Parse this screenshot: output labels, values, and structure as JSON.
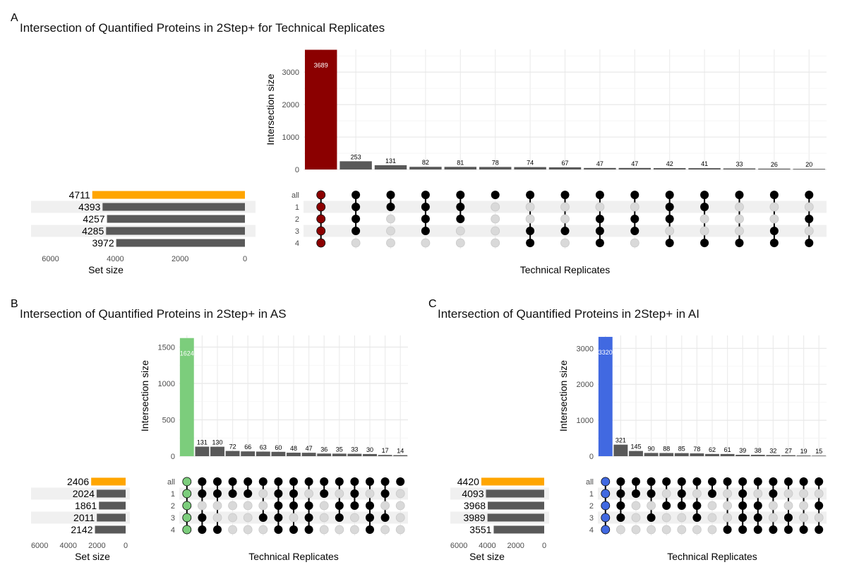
{
  "panels": [
    {
      "letter": "A",
      "title": "Intersection of Quantified Proteins in 2Step+ for Technical Replicates",
      "highlight_color": "#8B0000",
      "set_bar_highlight_color": "#FFA500",
      "chart_data": {
        "type": "bar",
        "subtype": "upset",
        "ylabel": "Intersection size",
        "xlabel": "Technical Replicates",
        "ylim": [
          0,
          3700
        ],
        "yticks": [
          0,
          1000,
          2000,
          3000
        ],
        "intersections": [
          3689,
          253,
          131,
          82,
          81,
          78,
          74,
          67,
          47,
          47,
          42,
          41,
          33,
          26,
          20
        ],
        "set_labels": [
          "all",
          "1",
          "2",
          "3",
          "4"
        ],
        "set_sizes": [
          4711,
          4393,
          4257,
          4285,
          3972
        ],
        "set_size_label": "Set size",
        "set_size_ticks": [
          6000,
          4000,
          2000,
          0
        ],
        "set_size_max": 6600,
        "matrix": [
          [
            1,
            1,
            1,
            1,
            1
          ],
          [
            1,
            1,
            1,
            1,
            0
          ],
          [
            1,
            1,
            0,
            0,
            0
          ],
          [
            1,
            1,
            1,
            1,
            0
          ],
          [
            1,
            1,
            1,
            0,
            0
          ],
          [
            1,
            0,
            0,
            0,
            0
          ],
          [
            1,
            0,
            0,
            1,
            1
          ],
          [
            1,
            0,
            0,
            1,
            0
          ],
          [
            1,
            0,
            1,
            1,
            1
          ],
          [
            1,
            0,
            1,
            1,
            0
          ],
          [
            1,
            1,
            1,
            0,
            1
          ],
          [
            1,
            1,
            0,
            0,
            1
          ],
          [
            1,
            0,
            0,
            0,
            1
          ],
          [
            1,
            0,
            0,
            1,
            1
          ],
          [
            1,
            0,
            1,
            0,
            1
          ]
        ]
      }
    },
    {
      "letter": "B",
      "title": "Intersection of Quantified Proteins in 2Step+ in AS",
      "highlight_color": "#7CCD7C",
      "set_bar_highlight_color": "#FFA500",
      "chart_data": {
        "type": "bar",
        "subtype": "upset",
        "ylabel": "Intersection size",
        "xlabel": "Technical Replicates",
        "ylim": [
          0,
          1660
        ],
        "yticks": [
          0,
          500,
          1000,
          1500
        ],
        "intersections": [
          1624,
          131,
          130,
          72,
          66,
          63,
          60,
          48,
          47,
          36,
          35,
          33,
          30,
          17,
          14
        ],
        "set_labels": [
          "all",
          "1",
          "2",
          "3",
          "4"
        ],
        "set_sizes": [
          2406,
          2024,
          1861,
          2011,
          2142
        ],
        "set_size_label": "Set size",
        "set_size_ticks": [
          6000,
          4000,
          2000,
          0
        ],
        "set_size_max": 6600,
        "matrix": [
          [
            1,
            1,
            1,
            1,
            1
          ],
          [
            1,
            1,
            0,
            1,
            1
          ],
          [
            1,
            1,
            0,
            0,
            1
          ],
          [
            1,
            1,
            0,
            0,
            0
          ],
          [
            1,
            1,
            0,
            0,
            0
          ],
          [
            1,
            0,
            0,
            1,
            0
          ],
          [
            1,
            1,
            1,
            1,
            1
          ],
          [
            1,
            1,
            1,
            0,
            1
          ],
          [
            1,
            0,
            1,
            1,
            1
          ],
          [
            1,
            1,
            0,
            0,
            0
          ],
          [
            1,
            0,
            1,
            1,
            0
          ],
          [
            1,
            1,
            1,
            0,
            0
          ],
          [
            1,
            0,
            1,
            1,
            1
          ],
          [
            1,
            1,
            0,
            1,
            0
          ],
          [
            1,
            0,
            0,
            0,
            0
          ]
        ]
      }
    },
    {
      "letter": "C",
      "title": "Intersection of Quantified Proteins in 2Step+ in AI",
      "highlight_color": "#4169E1",
      "set_bar_highlight_color": "#FFA500",
      "chart_data": {
        "type": "bar",
        "subtype": "upset",
        "ylabel": "Intersection size",
        "xlabel": "Technical Replicates",
        "ylim": [
          0,
          3360
        ],
        "yticks": [
          0,
          1000,
          2000,
          3000
        ],
        "intersections": [
          3320,
          321,
          145,
          90,
          88,
          85,
          78,
          62,
          61,
          39,
          38,
          32,
          27,
          19,
          15
        ],
        "set_labels": [
          "all",
          "1",
          "2",
          "3",
          "4"
        ],
        "set_sizes": [
          4420,
          4093,
          3968,
          3989,
          3551
        ],
        "set_size_label": "Set size",
        "set_size_ticks": [
          6000,
          4000,
          2000,
          0
        ],
        "set_size_max": 6600,
        "matrix": [
          [
            1,
            1,
            1,
            1,
            1
          ],
          [
            1,
            1,
            1,
            1,
            0
          ],
          [
            1,
            1,
            0,
            0,
            0
          ],
          [
            1,
            1,
            0,
            1,
            0
          ],
          [
            1,
            0,
            1,
            0,
            0
          ],
          [
            1,
            1,
            1,
            0,
            0
          ],
          [
            1,
            0,
            1,
            1,
            0
          ],
          [
            1,
            1,
            0,
            0,
            0
          ],
          [
            1,
            0,
            0,
            0,
            1
          ],
          [
            1,
            1,
            1,
            1,
            1
          ],
          [
            1,
            0,
            1,
            1,
            1
          ],
          [
            1,
            1,
            0,
            0,
            1
          ],
          [
            1,
            0,
            0,
            1,
            1
          ],
          [
            1,
            0,
            0,
            0,
            1
          ],
          [
            1,
            0,
            1,
            0,
            1
          ]
        ]
      }
    }
  ]
}
